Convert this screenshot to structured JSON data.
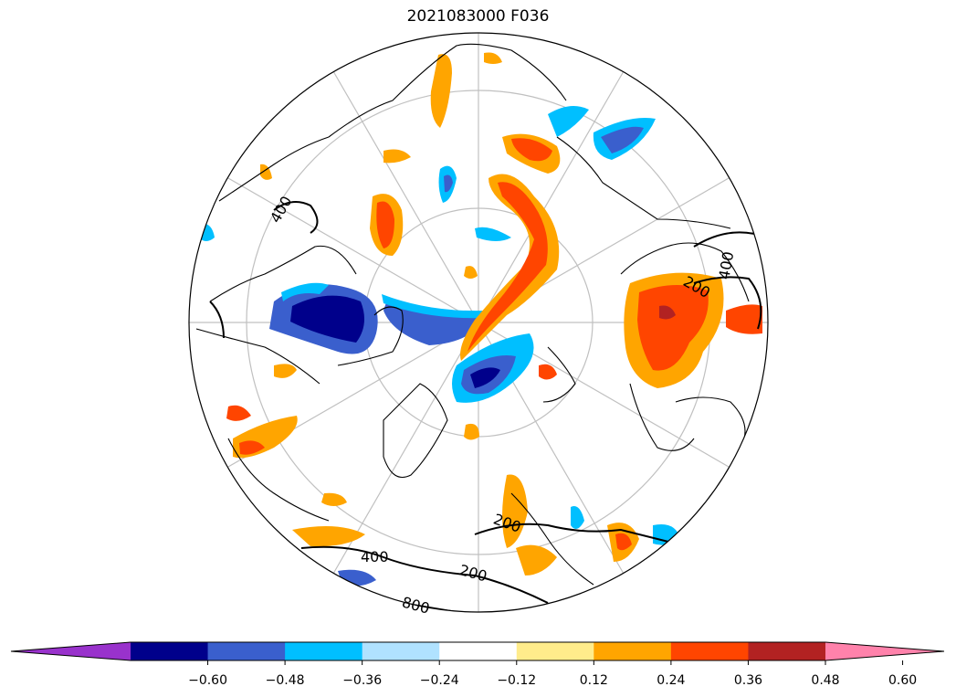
{
  "title": "2021083000 F036",
  "map": {
    "projection": "north-polar-stereographic",
    "contour_labels": [
      "400",
      "200",
      "400",
      "200",
      "200",
      "400",
      "800"
    ]
  },
  "colorbar": {
    "ticks": [
      "−0.60",
      "−0.48",
      "−0.36",
      "−0.24",
      "−0.12",
      "0.12",
      "0.24",
      "0.36",
      "0.48",
      "0.60"
    ],
    "colors": [
      "#9932CC",
      "#00008B",
      "#3A5FCD",
      "#00BFFF",
      "#B0E2FF",
      "#FFFFFF",
      "#FFEC8B",
      "#FFA500",
      "#FF4500",
      "#B22222",
      "#FF82AB"
    ],
    "extend": "both"
  }
}
